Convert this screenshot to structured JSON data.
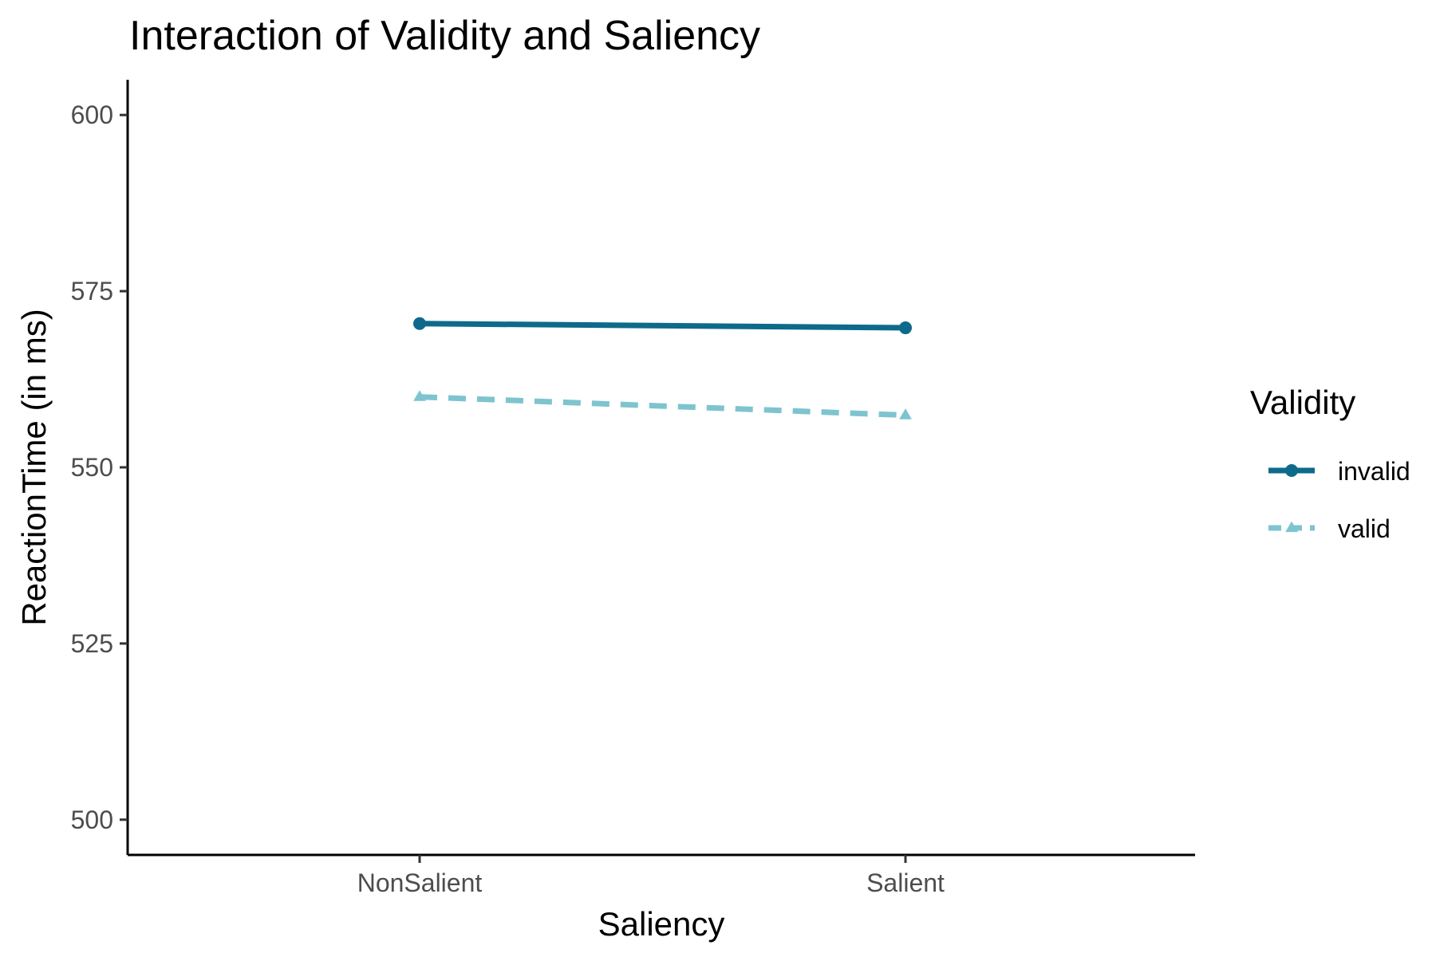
{
  "chart_data": {
    "type": "line",
    "title": "Interaction of Validity and Saliency",
    "xlabel": "Saliency",
    "ylabel": "ReactionTime (in ms)",
    "categories": [
      "NonSalient",
      "Salient"
    ],
    "ylim": [
      495,
      605
    ],
    "yticks": [
      500,
      525,
      550,
      575,
      600
    ],
    "grid": false,
    "legend": {
      "title": "Validity",
      "position": "right"
    },
    "series": [
      {
        "name": "invalid",
        "values": [
          570.4,
          569.8
        ],
        "color": "#0e6a8a",
        "line_style": "solid",
        "marker": "circle"
      },
      {
        "name": "valid",
        "values": [
          560.0,
          557.4
        ],
        "color": "#7ec4cf",
        "line_style": "dashed",
        "marker": "triangle"
      }
    ]
  }
}
